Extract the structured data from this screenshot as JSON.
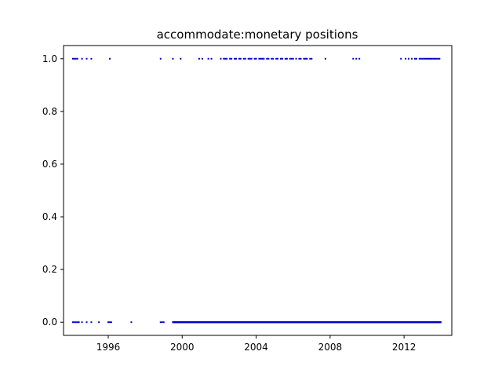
{
  "chart_data": {
    "type": "scatter",
    "title": "accommodate:monetary positions",
    "xlabel": "",
    "ylabel": "",
    "x_axis_type": "date",
    "xlim": [
      "1993-08-01",
      "2014-08-01"
    ],
    "ylim": [
      -0.05,
      1.05
    ],
    "x_ticks": [
      "1996-01-01",
      "2000-01-01",
      "2004-01-01",
      "2008-01-01",
      "2012-01-01"
    ],
    "x_tick_labels": [
      "1996",
      "2000",
      "2004",
      "2008",
      "2012"
    ],
    "y_ticks": [
      0.0,
      0.2,
      0.4,
      0.6,
      0.8,
      1.0
    ],
    "y_tick_labels": [
      "0.0",
      "0.2",
      "0.4",
      "0.6",
      "0.8",
      "1.0"
    ],
    "grid": false,
    "marker_color": "#0000cc",
    "series": [
      {
        "name": "",
        "points_value_1": [
          "1994-02-01",
          "1994-03-01",
          "1994-04-01",
          "1994-05-01",
          "1994-08-01",
          "1994-11-01",
          "1995-02-01",
          "1996-02-01",
          "1998-11-01",
          "1999-07-01",
          "1999-12-01",
          "2000-12-01",
          "2001-02-01",
          "2001-06-01",
          "2001-08-01",
          "2002-02-01",
          "2002-04-01",
          "2002-05-01",
          "2002-06-01",
          "2002-08-01",
          "2002-09-01",
          "2002-11-01",
          "2002-12-01",
          "2003-02-01",
          "2003-03-01",
          "2003-05-01",
          "2003-06-01",
          "2003-08-01",
          "2003-09-01",
          "2003-10-01",
          "2003-12-01",
          "2004-01-01",
          "2004-03-01",
          "2004-04-01",
          "2004-05-01",
          "2004-06-01",
          "2004-08-01",
          "2004-09-01",
          "2004-11-01",
          "2004-12-01",
          "2005-02-01",
          "2005-03-01",
          "2005-05-01",
          "2005-06-01",
          "2005-08-01",
          "2005-09-01",
          "2005-11-01",
          "2005-12-01",
          "2006-01-01",
          "2006-03-01",
          "2006-05-01",
          "2006-06-01",
          "2006-08-01",
          "2006-09-01",
          "2006-10-01",
          "2006-12-01",
          "2007-01-01",
          "2007-10-01",
          "2009-04-01",
          "2009-06-01",
          "2009-08-01",
          "2011-11-01",
          "2012-02-01",
          "2012-04-01",
          "2012-06-01",
          "2012-08-01",
          "2012-09-01",
          "2012-11-01",
          "2012-12-01",
          "2013-01-01",
          "2013-02-01",
          "2013-03-01",
          "2013-04-01",
          "2013-05-01",
          "2013-06-01",
          "2013-07-01",
          "2013-08-01",
          "2013-09-01",
          "2013-10-01",
          "2013-11-01",
          "2013-12-01"
        ],
        "dense_value_0_range": [
          "1999-07-01",
          "2013-12-31"
        ],
        "points_value_0": [
          "1994-02-01",
          "1994-03-01",
          "1994-04-01",
          "1994-05-01",
          "1994-06-01",
          "1994-08-01",
          "1994-11-01",
          "1995-02-01",
          "1995-07-01",
          "1996-01-01",
          "1996-02-01",
          "1996-03-01",
          "1997-04-01",
          "1998-11-01",
          "1998-12-01",
          "1999-01-01"
        ]
      }
    ]
  }
}
